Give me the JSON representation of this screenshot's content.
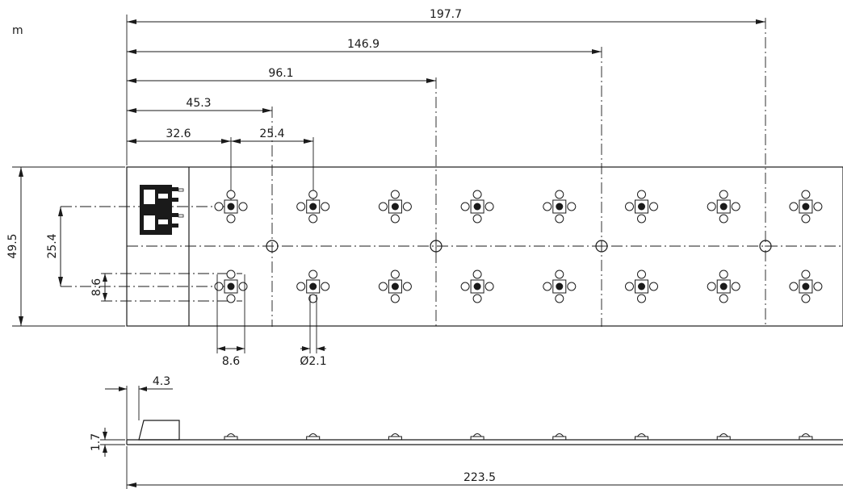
{
  "drawing": {
    "unit_label": "m",
    "top_dimensions": {
      "d1": "197.7",
      "d2": "146.9",
      "d3": "96.1",
      "d4": "45.3",
      "d5": "32.6",
      "d6": "25.4"
    },
    "left_dimensions": {
      "height": "49.5",
      "row_spacing": "25.4",
      "pad": "8.6"
    },
    "bottom_dimensions": {
      "pad_width": "8.6",
      "hole_diameter": "Ø2.1"
    },
    "side_view": {
      "connector_offset": "4.3",
      "thickness": "1.7",
      "total_length": "223.5"
    },
    "led_columns": 8,
    "led_rows": 2
  }
}
